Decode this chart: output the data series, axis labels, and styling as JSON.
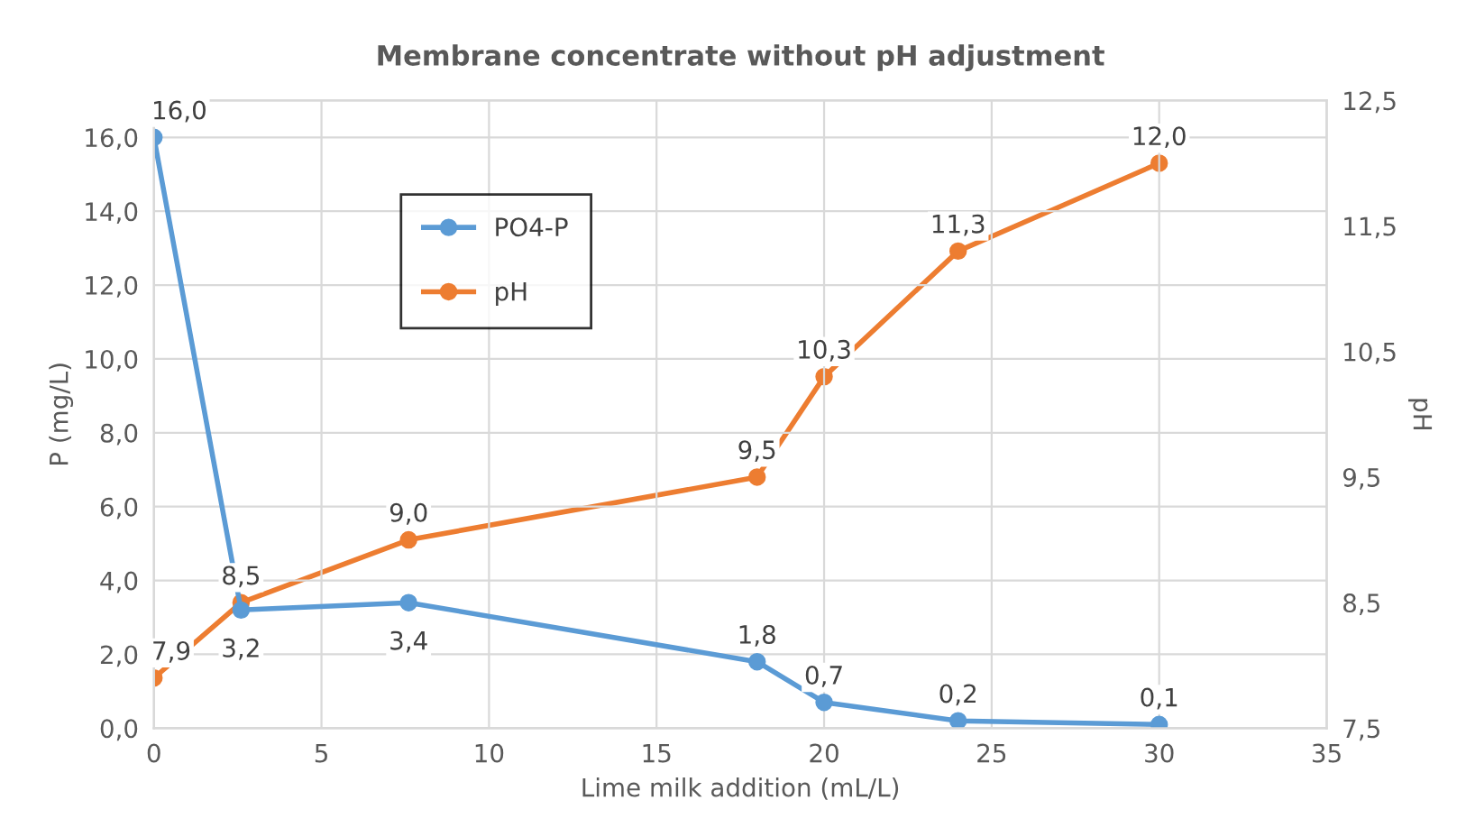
{
  "chart_data": {
    "type": "line",
    "title": "Membrane concentrate without pH adjustment",
    "xlabel": "Lime milk addition (mL/L)",
    "ylabel": "P (mg/L)",
    "y2label": "pH",
    "x": [
      0,
      2.6,
      7.6,
      18,
      20,
      24,
      30
    ],
    "series": [
      {
        "name": "PO4-P",
        "color": "#5b9bd5",
        "values": [
          16.0,
          3.2,
          3.4,
          1.8,
          0.7,
          0.2,
          0.1
        ],
        "value_labels": [
          "16,0",
          "3,2",
          "3,4",
          "1,8",
          "0,7",
          "0,2",
          "0,1"
        ]
      },
      {
        "name": "pH",
        "color": "#ed7d31",
        "axis": "y2",
        "values": [
          7.9,
          8.5,
          9.0,
          9.5,
          10.3,
          11.3,
          12.0
        ],
        "value_labels": [
          "7,9",
          "8,5",
          "9,0",
          "9,5",
          "10,3",
          "11,3",
          "12,0"
        ]
      }
    ],
    "xlim": [
      0,
      35
    ],
    "xticks": [
      0,
      5,
      10,
      15,
      20,
      25,
      30,
      35
    ],
    "ylim": [
      0,
      17
    ],
    "yticks": [
      {
        "value": 0,
        "label": "0,0"
      },
      {
        "value": 2,
        "label": "2,0"
      },
      {
        "value": 4,
        "label": "4,0"
      },
      {
        "value": 6,
        "label": "6,0"
      },
      {
        "value": 8,
        "label": "8,0"
      },
      {
        "value": 10,
        "label": "10,0"
      },
      {
        "value": 12,
        "label": "12,0"
      },
      {
        "value": 14,
        "label": "14,0"
      },
      {
        "value": 16,
        "label": "16,0"
      }
    ],
    "y2lim": [
      7.5,
      12.5
    ],
    "y2ticks": [
      {
        "value": 7.5,
        "label": "7,5"
      },
      {
        "value": 8.5,
        "label": "8,5"
      },
      {
        "value": 9.5,
        "label": "9,5"
      },
      {
        "value": 10.5,
        "label": "10,5"
      },
      {
        "value": 11.5,
        "label": "11,5"
      },
      {
        "value": 12.5,
        "label": "12,5"
      }
    ],
    "grid": true,
    "legend": "top left",
    "marker": "circle",
    "line_style": "solid"
  }
}
